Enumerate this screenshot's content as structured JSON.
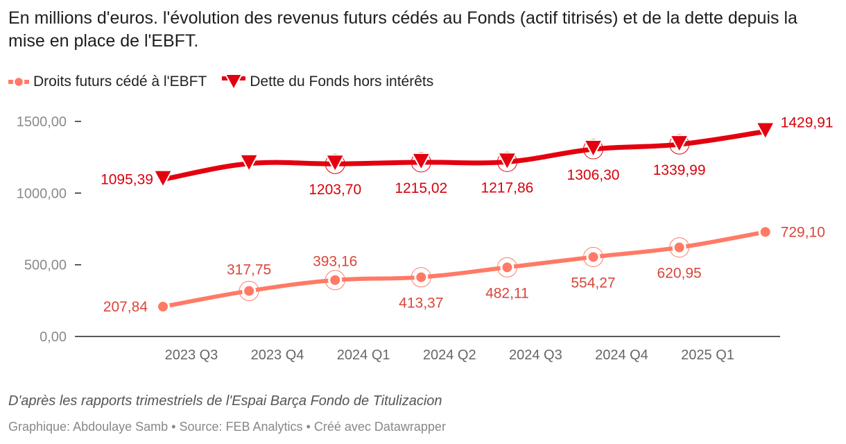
{
  "header": {
    "title": "En millions d'euros. l'évolution des revenus futurs cédés au Fonds (actif titrisés) et de la dette depuis la mise en place de l'EBFT."
  },
  "legend": [
    {
      "label": "Droits futurs cédé à l'EBFT",
      "color": "#ff7a66",
      "marker": "circle"
    },
    {
      "label": "Dette du Fonds hors intérêts",
      "color": "#e3000f",
      "marker": "triangle-down"
    }
  ],
  "footer": {
    "note": "D'après les rapports trimestriels de l'Espai Barça Fondo de Titulizacion",
    "credit": "Graphique: Abdoulaye Samb • Source: FEB Analytics • Créé avec Datawrapper"
  },
  "chart_data": {
    "type": "line",
    "title": "En millions d'euros. l'évolution des revenus futurs cédés au Fonds (actif titrisés) et de la dette depuis la mise en place de l'EBFT.",
    "x": [
      0,
      1,
      2,
      3,
      4,
      5,
      6,
      7
    ],
    "x_tick_labels": [
      "2023 Q3",
      "2023 Q4",
      "2024 Q1",
      "2024 Q2",
      "2024 Q3",
      "2024 Q4",
      "2025 Q1"
    ],
    "x_tick_positions": [
      0.33,
      1.33,
      2.33,
      3.33,
      4.33,
      5.33,
      6.33
    ],
    "ylim": [
      0,
      1500
    ],
    "y_ticks": [
      0,
      500,
      1000,
      1500
    ],
    "y_tick_labels": [
      "0,00",
      "500,00",
      "1000,00",
      "1500,00"
    ],
    "xlabel": "",
    "ylabel": "",
    "series": [
      {
        "name": "Dette du Fonds hors intérêts",
        "color": "#e3000f",
        "label_color": "#d8000a",
        "marker": "triangle-down",
        "values": [
          1095.39,
          1206.0,
          1203.7,
          1215.02,
          1217.86,
          1306.3,
          1339.99,
          1429.91
        ],
        "labels": [
          "1095,39",
          "",
          "1203,70",
          "1215,02",
          "1217,86",
          "1306,30",
          "1339,99",
          "1429,91"
        ]
      },
      {
        "name": "Droits futurs cédé à l'EBFT",
        "color": "#ff7a66",
        "label_color": "#d9463a",
        "marker": "circle",
        "values": [
          207.84,
          317.75,
          393.16,
          413.37,
          482.11,
          554.27,
          620.95,
          729.1
        ],
        "labels": [
          "207,84",
          "317,75",
          "393,16",
          "413,37",
          "482,11",
          "554,27",
          "620,95",
          "729,10"
        ]
      }
    ]
  }
}
